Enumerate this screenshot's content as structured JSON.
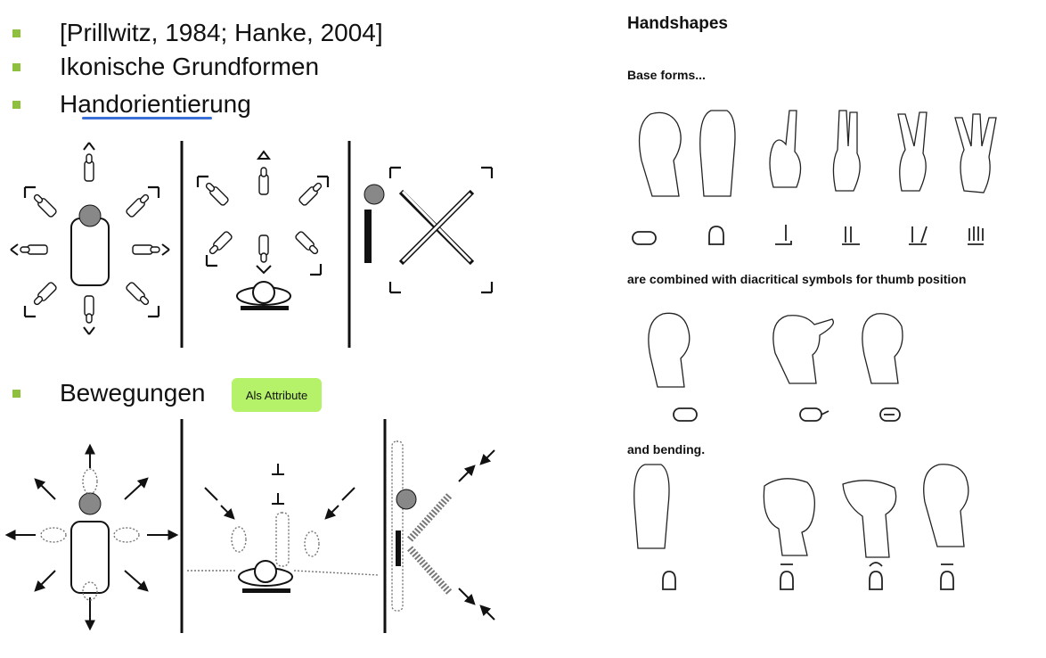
{
  "left": {
    "bullets": [
      {
        "text": "[Prillwitz, 1984; Hanke, 2004]"
      },
      {
        "text": "Ikonische Grundformen"
      },
      {
        "text": "Handorientierung"
      },
      {
        "text": "Bewegungen"
      }
    ],
    "badge": "Als Attribute",
    "colors": {
      "bullet": "#8fbf3f",
      "badge": "#b5f26a",
      "underline": "#3a6fd8"
    }
  },
  "right": {
    "title": "Handshapes",
    "base_forms_label": "Base forms...",
    "diacritics_label": "are combined with diacritical symbols for thumb position",
    "bending_label": "and bending."
  }
}
